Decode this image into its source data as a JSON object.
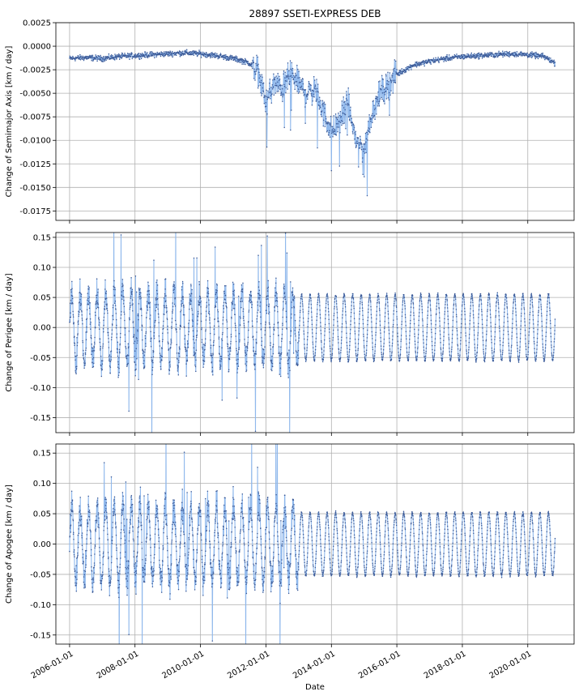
{
  "title": "28897 SSETI-EXPRESS DEB",
  "xlabel": "Date",
  "colors": {
    "line": "#8fb8ec",
    "marker": "#3d5a96",
    "grid": "#b0b0b0",
    "axis": "#000000"
  },
  "chart_data": [
    {
      "type": "line",
      "ylabel": "Change of Semimajor Axis [km / day]",
      "xlim": [
        "2005-08-01",
        "2021-06-01"
      ],
      "ylim": [
        -0.0185,
        0.0025
      ],
      "yticks": [
        "0.0025",
        "0.0000",
        "-0.0025",
        "-0.0050",
        "-0.0075",
        "-0.0100",
        "-0.0125",
        "-0.0150",
        "-0.0175"
      ],
      "ytick_values": [
        0.0025,
        0.0,
        -0.0025,
        -0.005,
        -0.0075,
        -0.01,
        -0.0125,
        -0.015,
        -0.0175
      ],
      "grid": true,
      "series": [
        {
          "x": [
            "2006-01-01",
            "2006-07-01",
            "2007-01-01",
            "2007-07-01",
            "2008-01-01",
            "2008-07-01",
            "2009-01-01",
            "2009-07-01",
            "2010-01-01",
            "2010-07-01",
            "2011-01-01",
            "2011-04-01",
            "2011-07-01",
            "2011-10-01",
            "2012-01-01",
            "2012-04-01",
            "2012-07-01",
            "2012-10-01",
            "2013-01-01",
            "2013-04-01",
            "2013-07-01",
            "2013-10-01",
            "2014-01-01",
            "2014-04-01",
            "2014-07-01",
            "2014-10-01",
            "2015-01-01",
            "2015-04-01",
            "2015-07-01",
            "2015-10-01",
            "2016-01-01",
            "2016-07-01",
            "2017-01-01",
            "2017-07-01",
            "2018-01-01",
            "2018-07-01",
            "2019-01-01",
            "2019-07-01",
            "2020-01-01",
            "2020-07-01",
            "2020-11-01"
          ],
          "y": [
            -0.0013,
            -0.0012,
            -0.0013,
            -0.0011,
            -0.001,
            -0.0009,
            -0.0008,
            -0.0007,
            -0.0008,
            -0.001,
            -0.0013,
            -0.0015,
            -0.0018,
            -0.0025,
            -0.006,
            -0.004,
            -0.0045,
            -0.003,
            -0.004,
            -0.005,
            -0.0045,
            -0.007,
            -0.009,
            -0.008,
            -0.006,
            -0.01,
            -0.011,
            -0.007,
            -0.005,
            -0.004,
            -0.003,
            -0.002,
            -0.0016,
            -0.0013,
            -0.0011,
            -0.001,
            -0.0009,
            -0.0008,
            -0.0009,
            -0.0011,
            -0.0018
          ]
        }
      ]
    },
    {
      "type": "line",
      "ylabel": "Change of Perigee [km / day]",
      "xlim": [
        "2005-08-01",
        "2021-06-01"
      ],
      "ylim": [
        -0.175,
        0.158
      ],
      "yticks": [
        "0.15",
        "0.10",
        "0.05",
        "0.00",
        "-0.05",
        "-0.10",
        "-0.15"
      ],
      "ytick_values": [
        0.15,
        0.1,
        0.05,
        0.0,
        -0.05,
        -0.1,
        -0.15
      ],
      "grid": true,
      "series": [
        {
          "description_x_range": [
            "2006-01-01",
            "2020-11-01"
          ],
          "oscillation_period_days": 95,
          "amplitude_before_2013": 0.07,
          "amplitude_after_2013": 0.055,
          "transition_date": "2013-01-01"
        }
      ]
    },
    {
      "type": "line",
      "ylabel": "Change of Apogee [km / day]",
      "xlim": [
        "2005-08-01",
        "2021-06-01"
      ],
      "ylim": [
        -0.165,
        0.165
      ],
      "yticks": [
        "0.15",
        "0.10",
        "0.05",
        "0.00",
        "-0.05",
        "-0.10",
        "-0.15"
      ],
      "ytick_values": [
        0.15,
        0.1,
        0.05,
        0.0,
        -0.05,
        -0.1,
        -0.15
      ],
      "grid": true,
      "series": [
        {
          "description_x_range": [
            "2006-01-01",
            "2020-11-01"
          ],
          "oscillation_period_days": 95,
          "amplitude_before_2013": 0.075,
          "amplitude_after_2013": 0.052,
          "transition_date": "2013-01-01"
        }
      ]
    }
  ],
  "xticks": [
    "2006-01-01",
    "2008-01-01",
    "2010-01-01",
    "2012-01-01",
    "2014-01-01",
    "2016-01-01",
    "2018-01-01",
    "2020-01-01"
  ]
}
